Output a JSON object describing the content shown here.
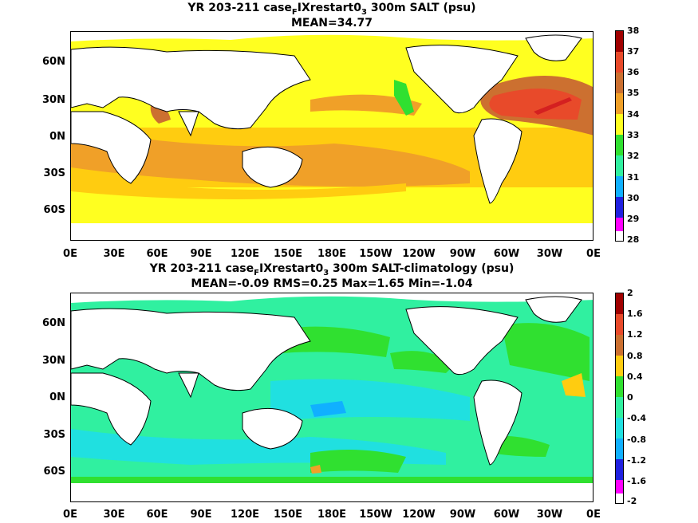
{
  "panels": [
    {
      "id": "top",
      "title_pre": "YR 203-211 case",
      "title_sub1": "F",
      "title_mid": "IXrestart0",
      "title_sub2": "3",
      "title_post": " 300m SALT (psu)",
      "stats": "MEAN=34.77",
      "colorbar": {
        "ticks": [
          "38",
          "37",
          "36",
          "35",
          "34",
          "33",
          "32",
          "31",
          "30",
          "29",
          "28"
        ],
        "colors": [
          "#a00000",
          "#d42020",
          "#e84a2a",
          "#cc7030",
          "#f0a028",
          "#ffcc10",
          "#ffff20",
          "#30e030",
          "#30f0a0",
          "#20e0e0",
          "#10b0ff",
          "#0060ff",
          "#2020e0",
          "#a000e0",
          "#ff00ff",
          "#b0b0b0",
          "#707070"
        ]
      }
    },
    {
      "id": "bottom",
      "title_pre": "YR 203-211 case",
      "title_sub1": "F",
      "title_mid": "IXrestart0",
      "title_sub2": "3",
      "title_post": " 300m SALT-climatology (psu)",
      "stats": "MEAN=-0.09   RMS=0.25   Max=1.65   Min=-1.04",
      "colorbar": {
        "ticks": [
          "2",
          "1.6",
          "1.2",
          "0.8",
          "0.4",
          "0",
          "-0.4",
          "-0.8",
          "-1.2",
          "-1.6",
          "-2"
        ],
        "colors": [
          "#a00000",
          "#d42020",
          "#e84a2a",
          "#cc7030",
          "#f0a028",
          "#ffcc10",
          "#ffff20",
          "#30e030",
          "#30f0a0",
          "#20e0e0",
          "#10b0ff",
          "#0060ff",
          "#2020e0",
          "#a000e0",
          "#ff00ff",
          "#b0b0b0",
          "#707070"
        ]
      }
    }
  ],
  "lat_labels": [
    "60N",
    "30N",
    "0N",
    "30S",
    "60S"
  ],
  "lon_labels": [
    "0E",
    "30E",
    "60E",
    "90E",
    "120E",
    "150E",
    "180E",
    "150W",
    "120W",
    "90W",
    "60W",
    "30W",
    "0E"
  ]
}
